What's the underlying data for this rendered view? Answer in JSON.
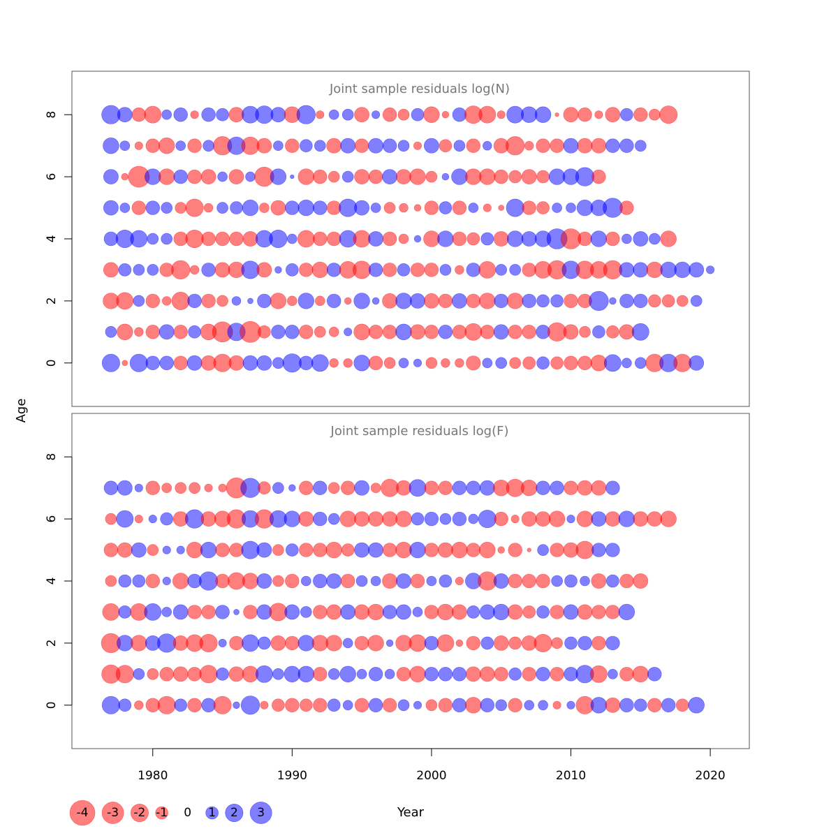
{
  "chart_data": {
    "type": "bubble",
    "x_label": "Year",
    "y_label": "Age",
    "x_ticks": [
      1980,
      1990,
      2000,
      2010,
      2020
    ],
    "y_ticks": [
      0,
      2,
      4,
      6,
      8
    ],
    "xlim": [
      1974.2,
      2022.8
    ],
    "ylim": [
      -1.4,
      9.4
    ],
    "years": [
      1977,
      1978,
      1979,
      1980,
      1981,
      1982,
      1983,
      1984,
      1985,
      1986,
      1987,
      1988,
      1989,
      1990,
      1991,
      1992,
      1993,
      1994,
      1995,
      1996,
      1997,
      1998,
      1999,
      2000,
      2001,
      2002,
      2003,
      2004,
      2005,
      2006,
      2007,
      2008,
      2009,
      2010,
      2011,
      2012,
      2013,
      2014,
      2015,
      2016,
      2017,
      2018,
      2019,
      2020
    ],
    "colors": {
      "negative": "#ff0000",
      "positive": "#0000ff"
    },
    "legend": {
      "values": [
        -4,
        -3,
        -2,
        -1,
        0,
        1,
        2,
        3
      ],
      "labels": [
        "-4",
        "-3",
        "-2",
        "-1",
        "0",
        "1",
        "2",
        "3"
      ]
    },
    "panels": [
      {
        "title": "Joint sample residuals log(N)",
        "ages": [
          0,
          1,
          2,
          3,
          4,
          5,
          6,
          7,
          8
        ],
        "residuals": [
          [
            2,
            -0.2,
            2,
            1.2,
            1.2,
            -1.2,
            1.4,
            -1.4,
            -2,
            -1.4,
            1.4,
            1.4,
            0.8,
            2.2,
            1.2,
            1.8,
            -0.5,
            -0.5,
            1.6,
            -1.2,
            -0.8,
            0.6,
            0.4,
            -0.8,
            -0.5,
            -0.5,
            -1.3,
            0.6,
            0.8,
            -0.8,
            -1,
            1,
            -1,
            -1.2,
            -1.2,
            -1.6,
            1.8,
            0.6,
            0.8,
            -2,
            2,
            -2,
            1.4
          ],
          [
            0.8,
            -1.6,
            -0.5,
            -1.2,
            1.4,
            -1.2,
            1,
            -1.6,
            -2.6,
            2,
            -2.8,
            -1,
            1.2,
            1.2,
            -1.2,
            -0.8,
            -0.6,
            0.4,
            -1.6,
            -1.2,
            -1.2,
            1.6,
            -1.4,
            -1.2,
            1.2,
            -1.2,
            -1.8,
            -1.2,
            1.4,
            -1.2,
            -1.2,
            1.2,
            -2.2,
            -1.4,
            -0.8,
            1,
            -1,
            -1.4,
            1.8
          ],
          [
            -1.6,
            -1.8,
            0.8,
            -1.2,
            -0.5,
            -2,
            1.2,
            -1.2,
            -0.8,
            0.5,
            0.2,
            1.2,
            -1.6,
            -0.6,
            1.6,
            -0.6,
            1.2,
            -0.3,
            1.6,
            0.3,
            -1.4,
            1.6,
            1.4,
            -1.4,
            -1.2,
            1.4,
            -1.2,
            -1.6,
            1.2,
            -1.6,
            1.2,
            1,
            1,
            -1.2,
            -1.2,
            2.4,
            0.3,
            1.2,
            1.2,
            -1,
            -1,
            -0.8,
            0.8
          ],
          [
            -1.4,
            1,
            0.8,
            0.8,
            -1.2,
            -2.2,
            -0.5,
            1.2,
            -1.4,
            -1.6,
            2,
            -1.4,
            0.3,
            1,
            -1.2,
            -1.6,
            1.2,
            -1.8,
            -2,
            1.2,
            -1.2,
            1,
            -1.2,
            -1.2,
            0.8,
            -0.5,
            1.2,
            -1.8,
            0.8,
            0.8,
            -1.2,
            -1.8,
            -2.2,
            2,
            -2,
            -1.8,
            -2.2,
            1.4,
            1.4,
            -1.6,
            1.6,
            1.6,
            1.4,
            0.4
          ],
          [
            1.2,
            2,
            1.8,
            0.8,
            0.8,
            -1.2,
            -2,
            -1.2,
            -1.2,
            -1.2,
            -1.4,
            1.8,
            2,
            0.6,
            -1.8,
            -1.2,
            -1.2,
            1.8,
            -1.8,
            1.4,
            -1.2,
            -0.6,
            0.3,
            -1.6,
            1.6,
            -1.2,
            -1,
            1,
            -1.4,
            1.6,
            1.4,
            1.6,
            2.6,
            -2.6,
            -1.2,
            1.6,
            -1.2,
            0.6,
            1.4,
            0.8,
            -1.6
          ],
          [
            1.4,
            0.6,
            -1.2,
            1.2,
            0.8,
            -0.8,
            -2,
            -0.5,
            0.8,
            1,
            1.6,
            -0.6,
            -1.4,
            1.2,
            1.6,
            1.2,
            -1.2,
            2,
            1.4,
            0.6,
            -0.8,
            -0.5,
            -0.3,
            -1.2,
            1,
            -1.2,
            0.6,
            -0.4,
            -0.2,
            2,
            -1.2,
            -1,
            0.6,
            0.6,
            1.6,
            1.6,
            2.4,
            -1.2
          ],
          [
            1.4,
            -0.3,
            -2.8,
            1.6,
            -1.6,
            1.2,
            -1.2,
            -1.4,
            0.6,
            -1.4,
            0.6,
            -2.4,
            1.6,
            0.1,
            -1.6,
            -1.2,
            -0.8,
            0.8,
            -1.4,
            -1.2,
            1.4,
            -1.4,
            -1.6,
            -0.8,
            0.3,
            1.6,
            -1.6,
            -1.6,
            -1.2,
            -1,
            -1.4,
            -1,
            1.6,
            1.6,
            2.2,
            -1.2
          ],
          [
            1.6,
            0.6,
            -0.4,
            -1.2,
            -1.6,
            0.6,
            -1.2,
            0.8,
            -2.2,
            2,
            -2,
            -1.4,
            0.6,
            -1.2,
            1,
            0.8,
            -1.4,
            1.4,
            -1.2,
            1.4,
            1.2,
            0.8,
            -0.4,
            1.4,
            -1,
            0.8,
            -1.2,
            0.5,
            -1.4,
            -2.2,
            -0.5,
            -1.2,
            -1.2,
            1.4,
            -1.4,
            -1.4,
            1.2,
            1.2,
            0.8
          ],
          [
            2.2,
            1.4,
            -1.2,
            -1.8,
            0.6,
            1.2,
            -0.4,
            1.2,
            1,
            -1.4,
            1.8,
            2,
            1.4,
            -1.6,
            2.2,
            -0.4,
            0.6,
            0.8,
            -1.4,
            0.4,
            -1.2,
            -0.8,
            1,
            -1.6,
            -0.3,
            1.2,
            -2,
            -1.8,
            -0.4,
            1.8,
            1.6,
            1.6,
            -0.1,
            -1.4,
            -1.2,
            -0.4,
            -1.4,
            1,
            -1.2,
            -0.8,
            -2
          ]
        ]
      },
      {
        "title": "Joint sample residuals log(F)",
        "ages": [
          0,
          1,
          2,
          3,
          4,
          5,
          6,
          7
        ],
        "residuals": [
          [
            2,
            1,
            -0.5,
            -1.2,
            -2,
            1,
            -1.2,
            1.2,
            -2,
            0.3,
            2.2,
            -0.4,
            -1,
            -1.2,
            -1,
            -1.2,
            1,
            0.6,
            -1.2,
            1.2,
            -1.2,
            0.8,
            0.4,
            -0.8,
            -1.2,
            1.2,
            -1.6,
            1.2,
            0.8,
            -1.2,
            0.6,
            0.6,
            -0.4,
            0.4,
            -2,
            1.6,
            -1.4,
            1.2,
            1,
            -1.2,
            1.2,
            -1,
            1.6
          ],
          [
            -2.2,
            -2,
            0.8,
            -0.8,
            -1.2,
            -1.4,
            -1.2,
            -2,
            1,
            -1.4,
            -1.6,
            1.8,
            0.8,
            1.6,
            1.6,
            -1.2,
            0.8,
            1.6,
            0.6,
            1.2,
            0.6,
            -1.2,
            -1.6,
            1.2,
            1.2,
            1.2,
            -1.4,
            -1.4,
            -1.2,
            1,
            -1.2,
            1.2,
            -1.2,
            1.2,
            2,
            -1.8,
            0.6,
            -1.2,
            -1.6,
            1.2
          ],
          [
            -2.4,
            1.6,
            -1.6,
            1.4,
            2.2,
            -1.4,
            -1.8,
            -2,
            0.4,
            -1.2,
            1.8,
            1,
            -1.4,
            -1.2,
            1.6,
            -1.6,
            -1.6,
            0.6,
            -1.2,
            -1.6,
            0.3,
            -1.6,
            -1.8,
            1.2,
            -1.8,
            -0.3,
            -1.2,
            1,
            -1.4,
            -1,
            -1.4,
            -2,
            -0.8,
            1,
            1.2,
            -1.2,
            1.2
          ],
          [
            -1.8,
            1,
            -1.8,
            1.8,
            0.6,
            1.4,
            -1.2,
            -1.2,
            1.2,
            0.2,
            -1.2,
            1.4,
            -2,
            1.4,
            0.8,
            -1.2,
            -1.4,
            1.4,
            -1.4,
            -1.6,
            1.2,
            1.4,
            0.6,
            -1.2,
            -1.6,
            -1.4,
            1,
            1.4,
            1.6,
            -1.4,
            -1,
            1,
            -1.2,
            1.4,
            -1.4,
            -1.2,
            -1.2,
            1.6
          ],
          [
            -0.8,
            1,
            1,
            -1.2,
            0.4,
            -1.6,
            1.2,
            2.2,
            -1.2,
            -1.8,
            -1.6,
            1.4,
            -0.8,
            -1.2,
            0.6,
            1.2,
            1.4,
            -1.2,
            0.8,
            0.6,
            -1.4,
            1.4,
            -1.2,
            0.6,
            1,
            -0.4,
            1.6,
            -2.2,
            1.4,
            -1.2,
            -1.2,
            -1.2,
            0.8,
            1,
            0.6,
            -1.4,
            1,
            -1.2,
            -1.4
          ],
          [
            -1.2,
            -1.4,
            1.4,
            -0.8,
            0.4,
            0.4,
            -1.6,
            1.6,
            -1.2,
            -1.2,
            2,
            1.4,
            -0.8,
            1,
            -1.2,
            -1.2,
            -1.6,
            -1,
            1.4,
            1.4,
            -1.2,
            -1.6,
            1.6,
            -1.2,
            -1.4,
            -1.6,
            -1.2,
            -1.6,
            -0.3,
            -1.2,
            -0.1,
            0.8,
            -1.2,
            -1.4,
            -2,
            1.2,
            1.2
          ],
          [
            -0.8,
            1.8,
            -0.4,
            0.4,
            1,
            -1.4,
            2.2,
            -1.4,
            -1.6,
            -2.2,
            1.8,
            -2.2,
            1.8,
            1.6,
            -1.4,
            1.2,
            0.8,
            -1.6,
            -1.4,
            -1.4,
            -1.4,
            -1.6,
            1,
            1.2,
            0.8,
            1.2,
            0.6,
            2,
            -1.2,
            -0.4,
            -1.4,
            -1.4,
            -1.6,
            0.4,
            -1.6,
            1.4,
            -1.4,
            1.6,
            -1.4,
            -1.4,
            -1.6
          ],
          [
            1.2,
            1.4,
            0.4,
            -1.2,
            -0.6,
            -0.8,
            -0.8,
            -0.4,
            -0.4,
            -2.6,
            2.4,
            -1,
            0.8,
            0.3,
            -1.2,
            1.2,
            -0.8,
            -1.2,
            1.4,
            -0.6,
            -2,
            -1.4,
            1.8,
            -1.2,
            -1.2,
            1.2,
            1.2,
            1.4,
            -1.6,
            -2,
            -1.6,
            1.2,
            1.2,
            -1.2,
            -1.4,
            -1.4,
            1.2
          ]
        ]
      }
    ]
  }
}
